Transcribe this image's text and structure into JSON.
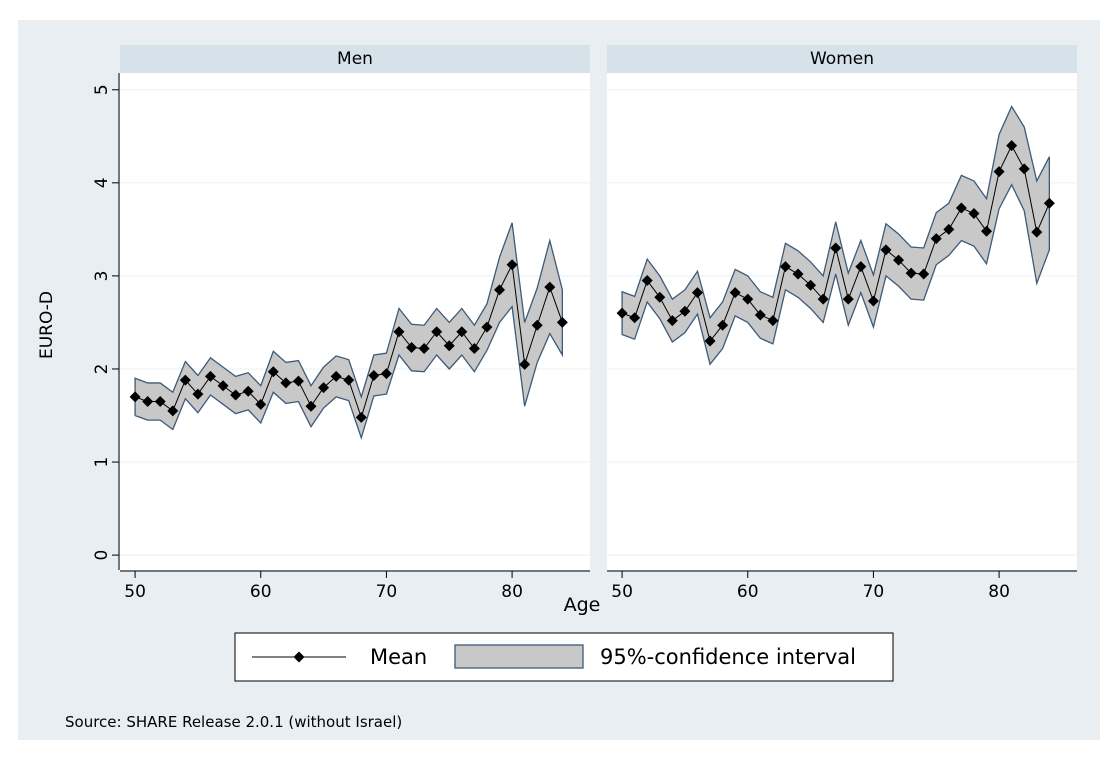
{
  "chart_data": {
    "type": "line",
    "ylabel": "EURO-D",
    "xlabel": "Age",
    "source": "Source: SHARE Release 2.0.1 (without Israel)",
    "ylim": [
      -0.16,
      5.18
    ],
    "yticks": [
      0,
      1,
      2,
      3,
      4,
      5
    ],
    "xlim": [
      48.8,
      86.2
    ],
    "xticks": [
      50,
      60,
      70,
      80
    ],
    "grid": true,
    "line_color": "#000000",
    "band_color": "#c8c8c8",
    "band_edge": "#3d5a78",
    "x": [
      50,
      51,
      52,
      53,
      54,
      55,
      56,
      57,
      58,
      59,
      60,
      61,
      62,
      63,
      64,
      65,
      66,
      67,
      68,
      69,
      70,
      71,
      72,
      73,
      74,
      75,
      76,
      77,
      78,
      79,
      80,
      81,
      82,
      83,
      84
    ],
    "panels": [
      {
        "title": "Men",
        "series": [
          {
            "name": "Mean",
            "values": [
              1.7,
              1.65,
              1.65,
              1.55,
              1.88,
              1.73,
              1.92,
              1.82,
              1.72,
              1.76,
              1.62,
              1.97,
              1.85,
              1.87,
              1.6,
              1.8,
              1.92,
              1.88,
              1.48,
              1.93,
              1.95,
              2.4,
              2.23,
              2.22,
              2.4,
              2.25,
              2.4,
              2.22,
              2.45,
              2.85,
              3.12,
              2.05,
              2.47,
              2.88,
              2.5
            ]
          },
          {
            "name": "95%-confidence interval",
            "lower": [
              1.5,
              1.45,
              1.45,
              1.35,
              1.68,
              1.53,
              1.72,
              1.62,
              1.52,
              1.56,
              1.42,
              1.75,
              1.63,
              1.65,
              1.38,
              1.58,
              1.7,
              1.66,
              1.26,
              1.71,
              1.73,
              2.15,
              1.98,
              1.97,
              2.15,
              2.0,
              2.15,
              1.97,
              2.2,
              2.5,
              2.67,
              1.6,
              2.07,
              2.38,
              2.15
            ],
            "upper": [
              1.9,
              1.85,
              1.85,
              1.75,
              2.08,
              1.93,
              2.12,
              2.02,
              1.92,
              1.96,
              1.82,
              2.19,
              2.07,
              2.09,
              1.82,
              2.02,
              2.14,
              2.1,
              1.7,
              2.15,
              2.17,
              2.65,
              2.48,
              2.47,
              2.65,
              2.5,
              2.65,
              2.47,
              2.7,
              3.2,
              3.57,
              2.5,
              2.87,
              3.38,
              2.85
            ]
          }
        ]
      },
      {
        "title": "Women",
        "series": [
          {
            "name": "Mean",
            "values": [
              2.6,
              2.55,
              2.95,
              2.77,
              2.52,
              2.62,
              2.82,
              2.3,
              2.47,
              2.82,
              2.75,
              2.58,
              2.52,
              3.1,
              3.02,
              2.9,
              2.75,
              3.3,
              2.75,
              3.1,
              2.73,
              3.28,
              3.17,
              3.03,
              3.02,
              3.4,
              3.5,
              3.73,
              3.67,
              3.48,
              4.12,
              4.4,
              4.15,
              3.47,
              3.78
            ]
          },
          {
            "name": "95%-confidence interval",
            "lower": [
              2.37,
              2.32,
              2.72,
              2.54,
              2.29,
              2.39,
              2.59,
              2.05,
              2.22,
              2.57,
              2.5,
              2.33,
              2.27,
              2.85,
              2.77,
              2.65,
              2.5,
              3.02,
              2.47,
              2.82,
              2.45,
              3.0,
              2.89,
              2.75,
              2.74,
              3.12,
              3.22,
              3.38,
              3.32,
              3.13,
              3.72,
              3.98,
              3.7,
              2.92,
              3.28
            ],
            "upper": [
              2.83,
              2.78,
              3.18,
              3.0,
              2.75,
              2.85,
              3.05,
              2.55,
              2.72,
              3.07,
              3.0,
              2.83,
              2.77,
              3.35,
              3.27,
              3.15,
              3.0,
              3.58,
              3.03,
              3.38,
              3.01,
              3.56,
              3.45,
              3.31,
              3.3,
              3.68,
              3.78,
              4.08,
              4.02,
              3.83,
              4.52,
              4.82,
              4.6,
              4.02,
              4.28
            ]
          }
        ]
      }
    ]
  }
}
